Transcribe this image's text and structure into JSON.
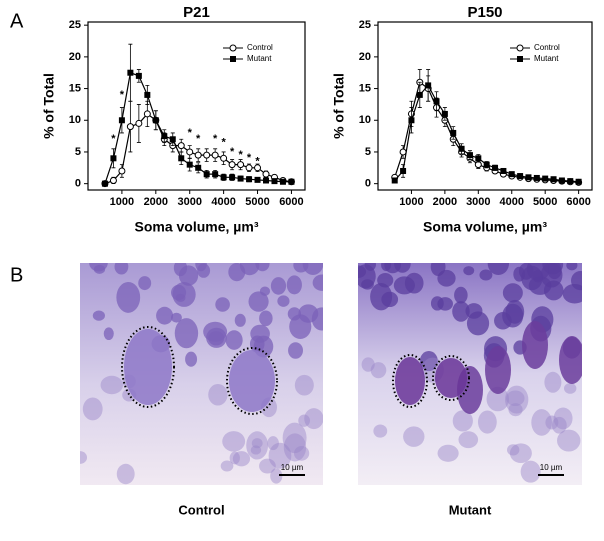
{
  "panel_labels": [
    "A",
    "B"
  ],
  "chart_data": [
    {
      "type": "line",
      "title": "P21",
      "xlabel": "Soma volume, µm³",
      "ylabel": "% of Total",
      "x": [
        500,
        750,
        1000,
        1250,
        1500,
        1750,
        2000,
        2250,
        2500,
        2750,
        3000,
        3250,
        3500,
        3750,
        4000,
        4250,
        4500,
        4750,
        5000,
        5250,
        5500,
        5750,
        6000
      ],
      "series": [
        {
          "name": "Control",
          "color": "#000000",
          "marker": "circle-open",
          "values": [
            0,
            0.5,
            2,
            9,
            9.5,
            11,
            10,
            7,
            6,
            6,
            5,
            4.5,
            4.5,
            4.5,
            4,
            3,
            3,
            2.5,
            2.5,
            1.5,
            1,
            0.5,
            0.3
          ],
          "errors": [
            0.3,
            0.5,
            1,
            4,
            3,
            2,
            1.5,
            1,
            1,
            1,
            1,
            1,
            1,
            1,
            1,
            0.8,
            0.8,
            0.6,
            0.6,
            0.5,
            0.4,
            0.3,
            0.2
          ]
        },
        {
          "name": "Mutant",
          "color": "#000000",
          "marker": "square",
          "values": [
            0,
            4,
            10,
            17.5,
            17,
            14,
            10,
            7.5,
            7,
            4,
            3,
            2.5,
            1.5,
            1.5,
            1,
            1,
            0.8,
            0.7,
            0.6,
            0.5,
            0.4,
            0.3,
            0.3
          ],
          "errors": [
            0.2,
            1.5,
            2,
            4.5,
            1,
            1.5,
            1.5,
            1,
            1,
            1,
            1,
            0.8,
            0.6,
            0.6,
            0.5,
            0.5,
            0.4,
            0.4,
            0.3,
            0.3,
            0.2,
            0.2,
            0.2
          ]
        }
      ],
      "annotations": [
        {
          "text": "*",
          "x": 750,
          "y": 7
        },
        {
          "text": "*",
          "x": 1000,
          "y": 14
        },
        {
          "text": "*",
          "x": 3000,
          "y": 8
        },
        {
          "text": "*",
          "x": 3250,
          "y": 7
        },
        {
          "text": "*",
          "x": 3750,
          "y": 7
        },
        {
          "text": "*",
          "x": 4000,
          "y": 6.5
        },
        {
          "text": "*",
          "x": 4250,
          "y": 5
        },
        {
          "text": "*",
          "x": 4500,
          "y": 4.5
        },
        {
          "text": "*",
          "x": 4750,
          "y": 4
        },
        {
          "text": "*",
          "x": 5000,
          "y": 3.5
        }
      ],
      "xlim": [
        0,
        6400
      ],
      "xticks": [
        1000,
        2000,
        3000,
        4000,
        5000,
        6000
      ],
      "ylim": [
        -1,
        25.5
      ],
      "yticks": [
        0,
        5,
        10,
        15,
        20,
        25
      ],
      "legend": "upper right"
    },
    {
      "type": "line",
      "title": "P150",
      "xlabel": "Soma volume, µm³",
      "ylabel": "% of Total",
      "x": [
        500,
        750,
        1000,
        1250,
        1500,
        1750,
        2000,
        2250,
        2500,
        2750,
        3000,
        3250,
        3500,
        3750,
        4000,
        4250,
        4500,
        4750,
        5000,
        5250,
        5500,
        5750,
        6000
      ],
      "series": [
        {
          "name": "Control",
          "color": "#000000",
          "marker": "circle-open",
          "values": [
            1,
            5,
            11,
            16,
            15,
            12,
            10,
            7,
            5,
            4,
            3,
            2.5,
            2,
            1.5,
            1.2,
            1,
            0.8,
            0.7,
            0.6,
            0.5,
            0.4,
            0.3,
            0.2
          ],
          "errors": [
            0.3,
            1,
            2,
            2,
            2,
            1.5,
            1,
            1,
            0.8,
            0.7,
            0.6,
            0.5,
            0.4,
            0.3,
            0.3,
            0.3,
            0.2,
            0.2,
            0.2,
            0.2,
            0.2,
            0.2,
            0.1
          ]
        },
        {
          "name": "Mutant",
          "color": "#000000",
          "marker": "square",
          "values": [
            0.5,
            2,
            10,
            14,
            15.5,
            13,
            11,
            8,
            5.5,
            4.5,
            4,
            3,
            2.5,
            2,
            1.5,
            1.2,
            1,
            0.9,
            0.8,
            0.7,
            0.5,
            0.4,
            0.3
          ],
          "errors": [
            0.2,
            1,
            2,
            2,
            2.5,
            1.5,
            1,
            1,
            0.8,
            0.7,
            0.6,
            0.5,
            0.4,
            0.3,
            0.3,
            0.3,
            0.2,
            0.2,
            0.2,
            0.2,
            0.2,
            0.2,
            0.1
          ]
        }
      ],
      "xlim": [
        0,
        6400
      ],
      "xticks": [
        1000,
        2000,
        3000,
        4000,
        5000,
        6000
      ],
      "ylim": [
        -1,
        25.5
      ],
      "yticks": [
        0,
        5,
        10,
        15,
        20,
        25
      ],
      "legend": "upper right"
    }
  ],
  "micrographs": [
    {
      "caption": "Control",
      "scale_bar": "10 µm"
    },
    {
      "caption": "Mutant",
      "scale_bar": "10 µm"
    }
  ]
}
